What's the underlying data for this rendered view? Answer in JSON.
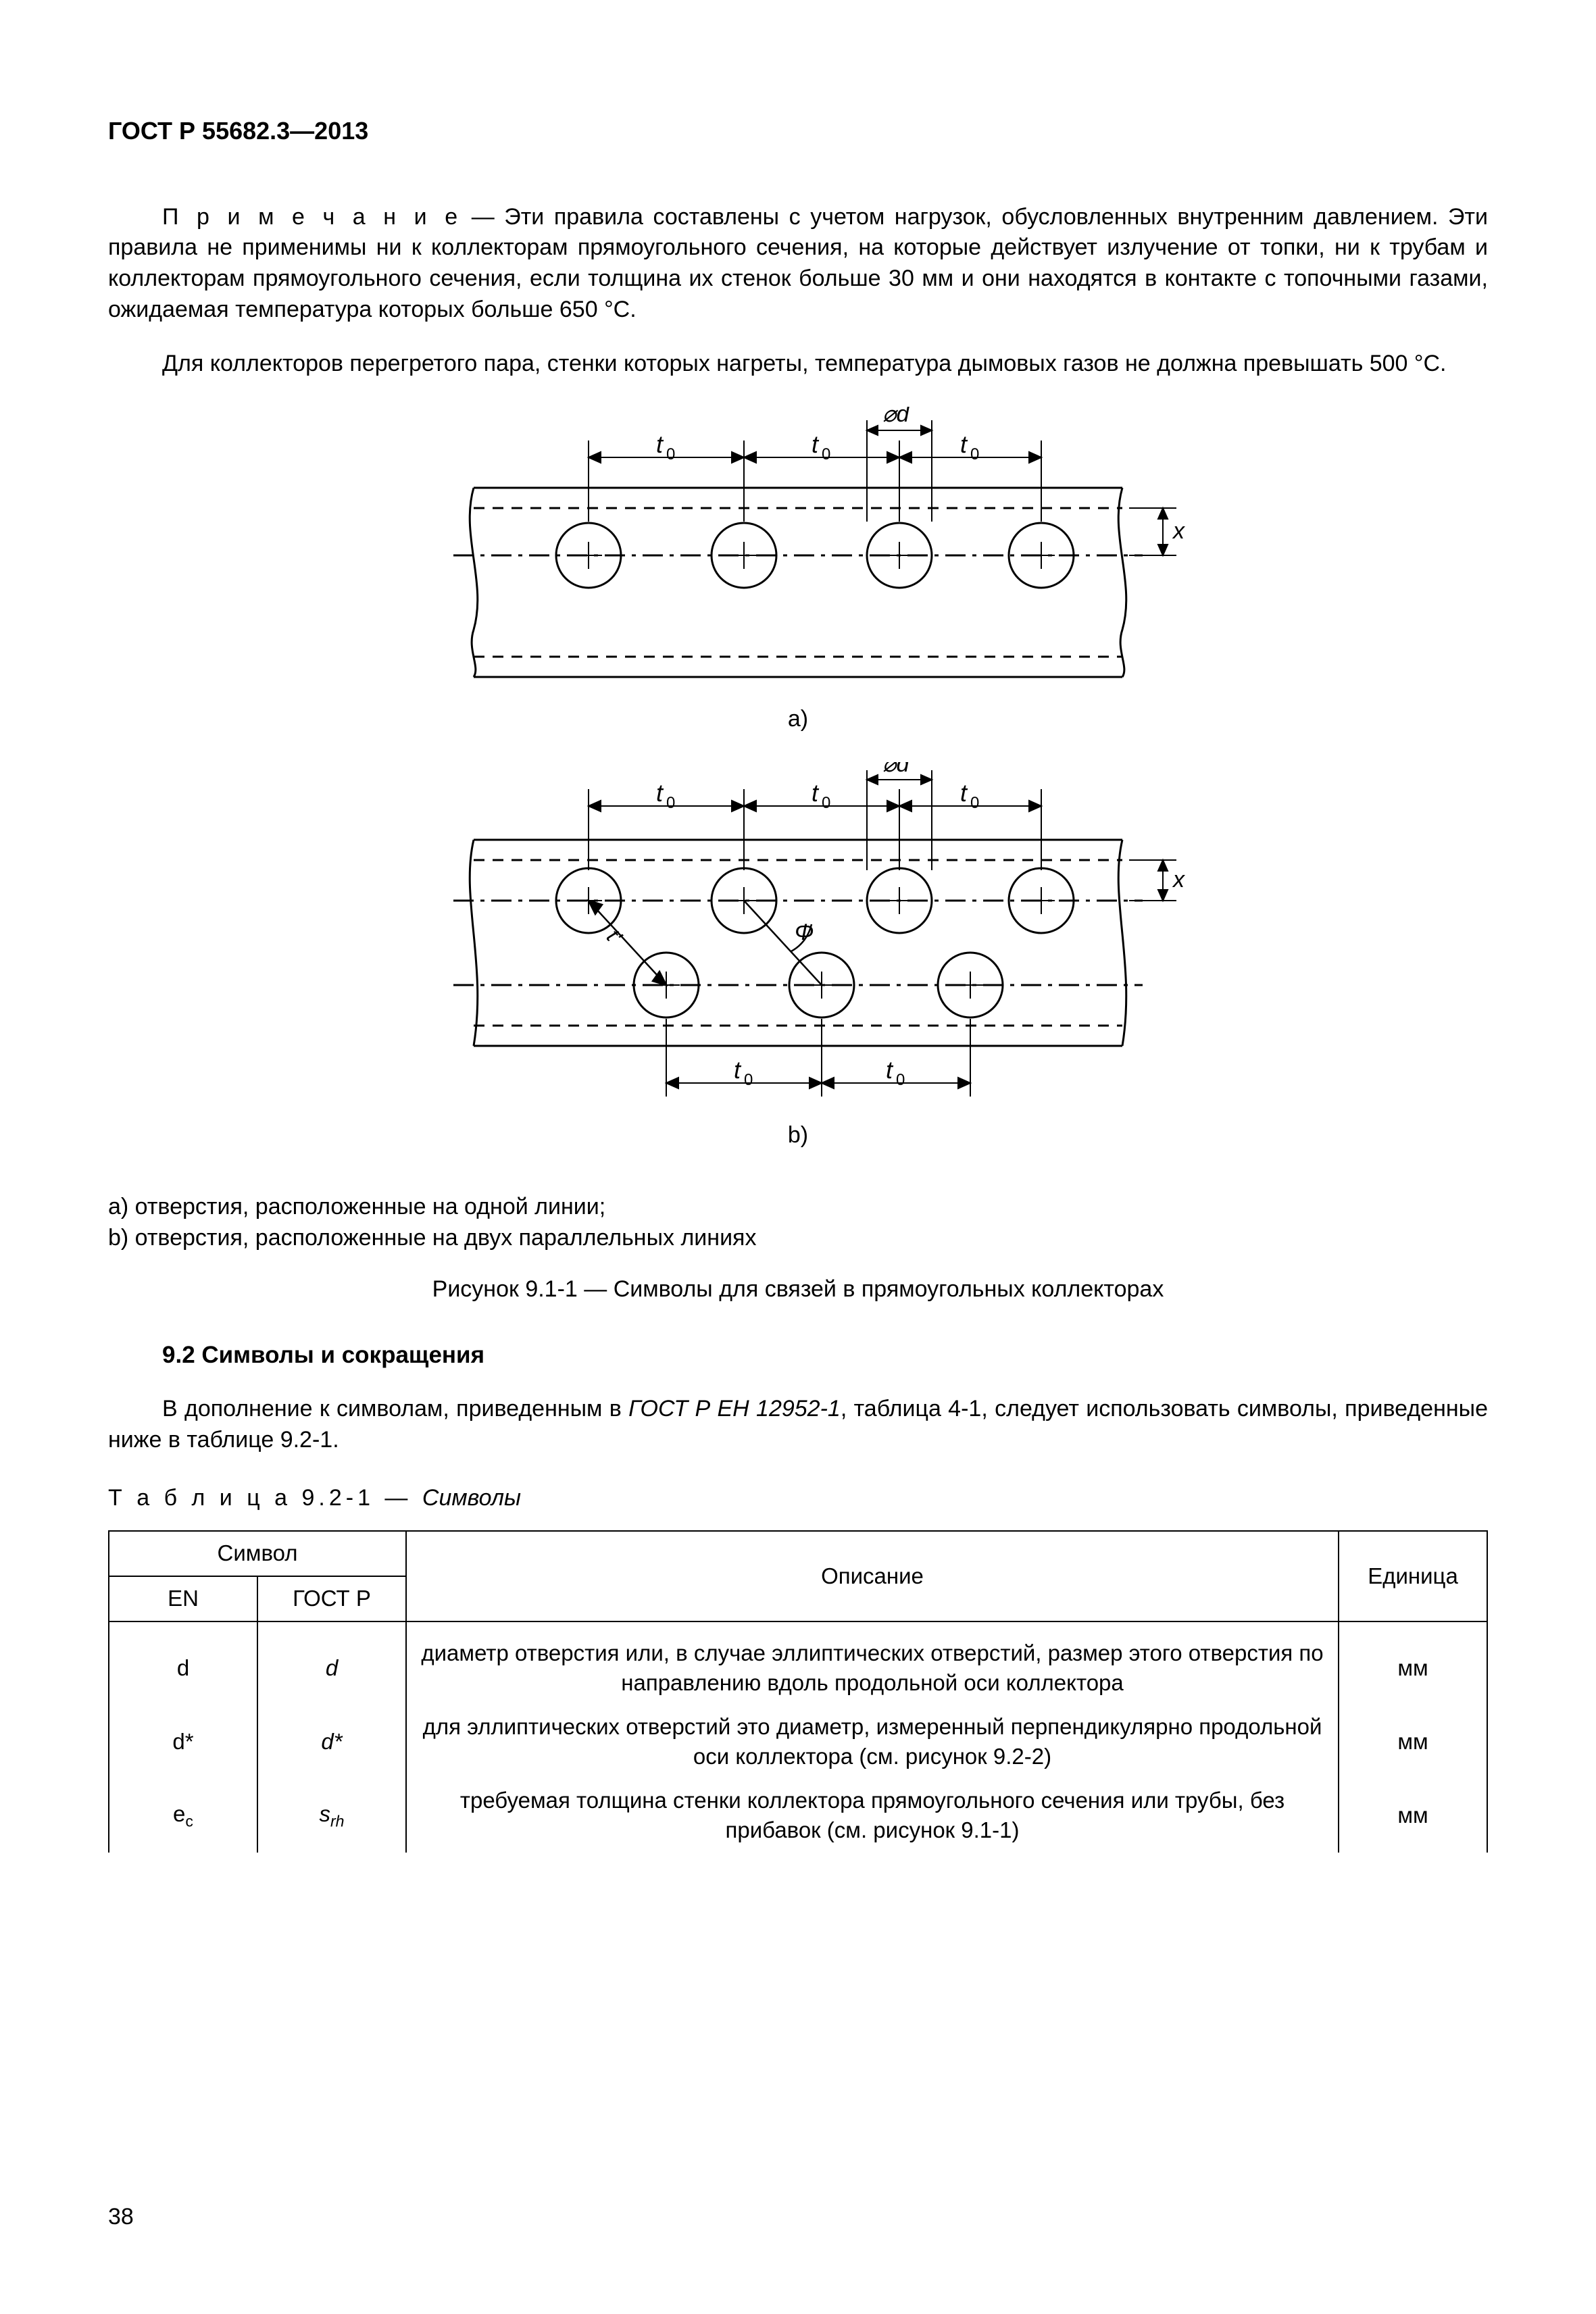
{
  "doc_header": "ГОСТ Р 55682.3—2013",
  "note_label": "П р и м е ч а н и е",
  "note_body": " — Эти правила составлены с учетом нагрузок, обусловленных внутренним давлением. Эти правила не применимы ни к коллекторам прямоугольного сечения, на которые действует излучение от топки, ни к трубам и коллекторам прямоугольного сечения, если толщина их стенок больше 30 мм и они находятся в контакте с топочными газами, ожидаемая температура которых больше 650 °C.",
  "para2": "Для коллекторов перегретого пара, стенки которых нагреты, температура дымовых газов не должна превышать 500 °C.",
  "figure": {
    "a_label": "a)",
    "b_label": "b)",
    "t0": "t",
    "t0_sub": "0",
    "diam": "⌀d",
    "x_label": "x",
    "phi": "Φ",
    "ts": "t",
    "stroke": "#000000",
    "stroke_width": 3,
    "hole_radius": 48,
    "caption_a": "a) отверстия, расположенные на одной линии;",
    "caption_b": "b) отверстия, расположенные на двух параллельных линиях",
    "title": "Рисунок 9.1-1 — Символы для связей в прямоугольных коллекторах"
  },
  "section": {
    "heading": "9.2 Символы и сокращения",
    "para_pre": "В дополнение к символам, приведенным в ",
    "para_em": "ГОСТ Р ЕН 12952-1",
    "para_post": ", таблица 4-1, следует использовать символы, приведенные ниже в таблице 9.2-1."
  },
  "table": {
    "caption_label": "Т а б л и ц а 9.2-1 — ",
    "caption_em": "Символы",
    "head_symbol": "Символ",
    "head_en": "EN",
    "head_gost": "ГОСТ Р",
    "head_desc": "Описание",
    "head_unit": "Единица",
    "rows": [
      {
        "en": "d",
        "gost_html": "<span class=\"italic\">d</span>",
        "desc": "диаметр отверстия или, в случае эллиптических отверстий, размер этого отверстия по направлению вдоль продольной оси коллектора",
        "unit": "мм"
      },
      {
        "en": "d*",
        "gost_html": "<span class=\"italic\">d*</span>",
        "desc": "для эллиптических отверстий это диаметр, измеренный перпендикулярно продольной оси коллектора (см. рисунок 9.2-2)",
        "unit": "мм"
      },
      {
        "en": "e<span class=\"sub\">c</span>",
        "gost_html": "<span class=\"italic\">s<span class=\"sub\">rh</span></span>",
        "desc": "требуемая толщина стенки коллектора прямоугольного сечения или трубы, без прибавок (см. рисунок 9.1-1)",
        "unit": "мм"
      }
    ]
  },
  "page_number": "38"
}
